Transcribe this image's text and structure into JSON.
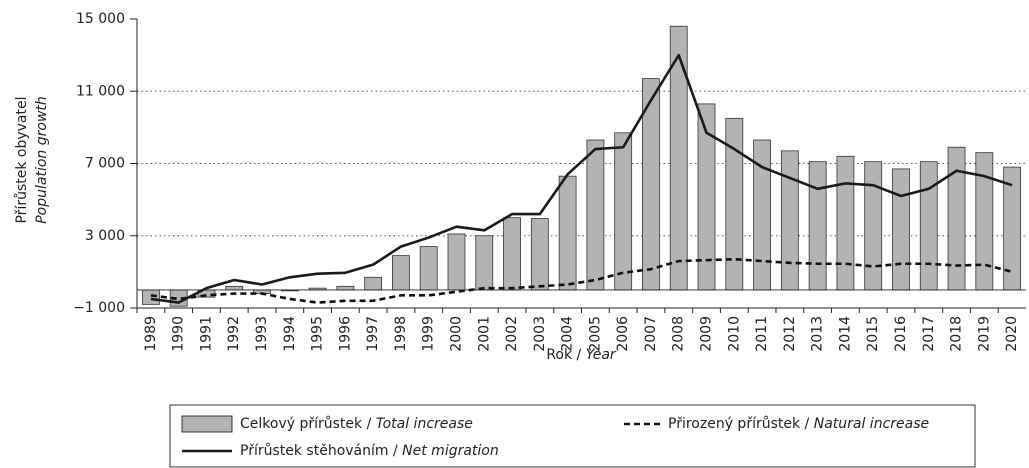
{
  "chart_data": {
    "type": "bar-line",
    "ylabel": [
      "Přírůstek obyvatel",
      "Population growth"
    ],
    "xlabel": [
      "Rok",
      "Year"
    ],
    "categories": [
      "1989",
      "1990",
      "1991",
      "1992",
      "1993",
      "1994",
      "1995",
      "1996",
      "1997",
      "1998",
      "1999",
      "2000",
      "2001",
      "2002",
      "2003",
      "2004",
      "2005",
      "2006",
      "2007",
      "2008",
      "2009",
      "2010",
      "2011",
      "2012",
      "2013",
      "2014",
      "2015",
      "2016",
      "2017",
      "2018",
      "2019",
      "2020"
    ],
    "ylim": [
      -1000,
      15000
    ],
    "yticks": [
      {
        "value": -1000,
        "label": "−1 000"
      },
      {
        "value": 3000,
        "label": "3 000"
      },
      {
        "value": 7000,
        "label": "7 000"
      },
      {
        "value": 11000,
        "label": "11 000"
      },
      {
        "value": 15000,
        "label": "15 000"
      }
    ],
    "grid": true,
    "series": [
      {
        "name": "Celkový přírůstek / Total increase",
        "type": "bar",
        "color": "#b3b3b3",
        "values": [
          -800,
          -900,
          -400,
          200,
          -200,
          -50,
          100,
          200,
          700,
          1900,
          2400,
          3100,
          3000,
          4000,
          3950,
          6300,
          8300,
          8700,
          11700,
          14600,
          10300,
          9500,
          8300,
          7700,
          7100,
          7400,
          7100,
          6700,
          7100,
          7900,
          7600,
          6800
        ]
      },
      {
        "name": "Přirozený přírůstek / Natural increase",
        "type": "line",
        "dash": true,
        "color": "#111111",
        "values": [
          -300,
          -500,
          -300,
          -200,
          -200,
          -500,
          -700,
          -600,
          -600,
          -300,
          -300,
          -100,
          100,
          100,
          200,
          300,
          550,
          950,
          1150,
          1600,
          1650,
          1700,
          1600,
          1500,
          1450,
          1450,
          1300,
          1450,
          1450,
          1350,
          1400,
          1000
        ]
      },
      {
        "name": "Přírůstek stěhováním / Net migration",
        "type": "line",
        "color": "#1a1a1a",
        "values": [
          -500,
          -700,
          100,
          550,
          300,
          700,
          900,
          950,
          1400,
          2400,
          2900,
          3500,
          3300,
          4200,
          4200,
          6400,
          7800,
          7900,
          10500,
          13000,
          8700,
          7800,
          6800,
          6200,
          5600,
          5900,
          5800,
          5200,
          5600,
          6600,
          6300,
          5800
        ]
      }
    ]
  }
}
